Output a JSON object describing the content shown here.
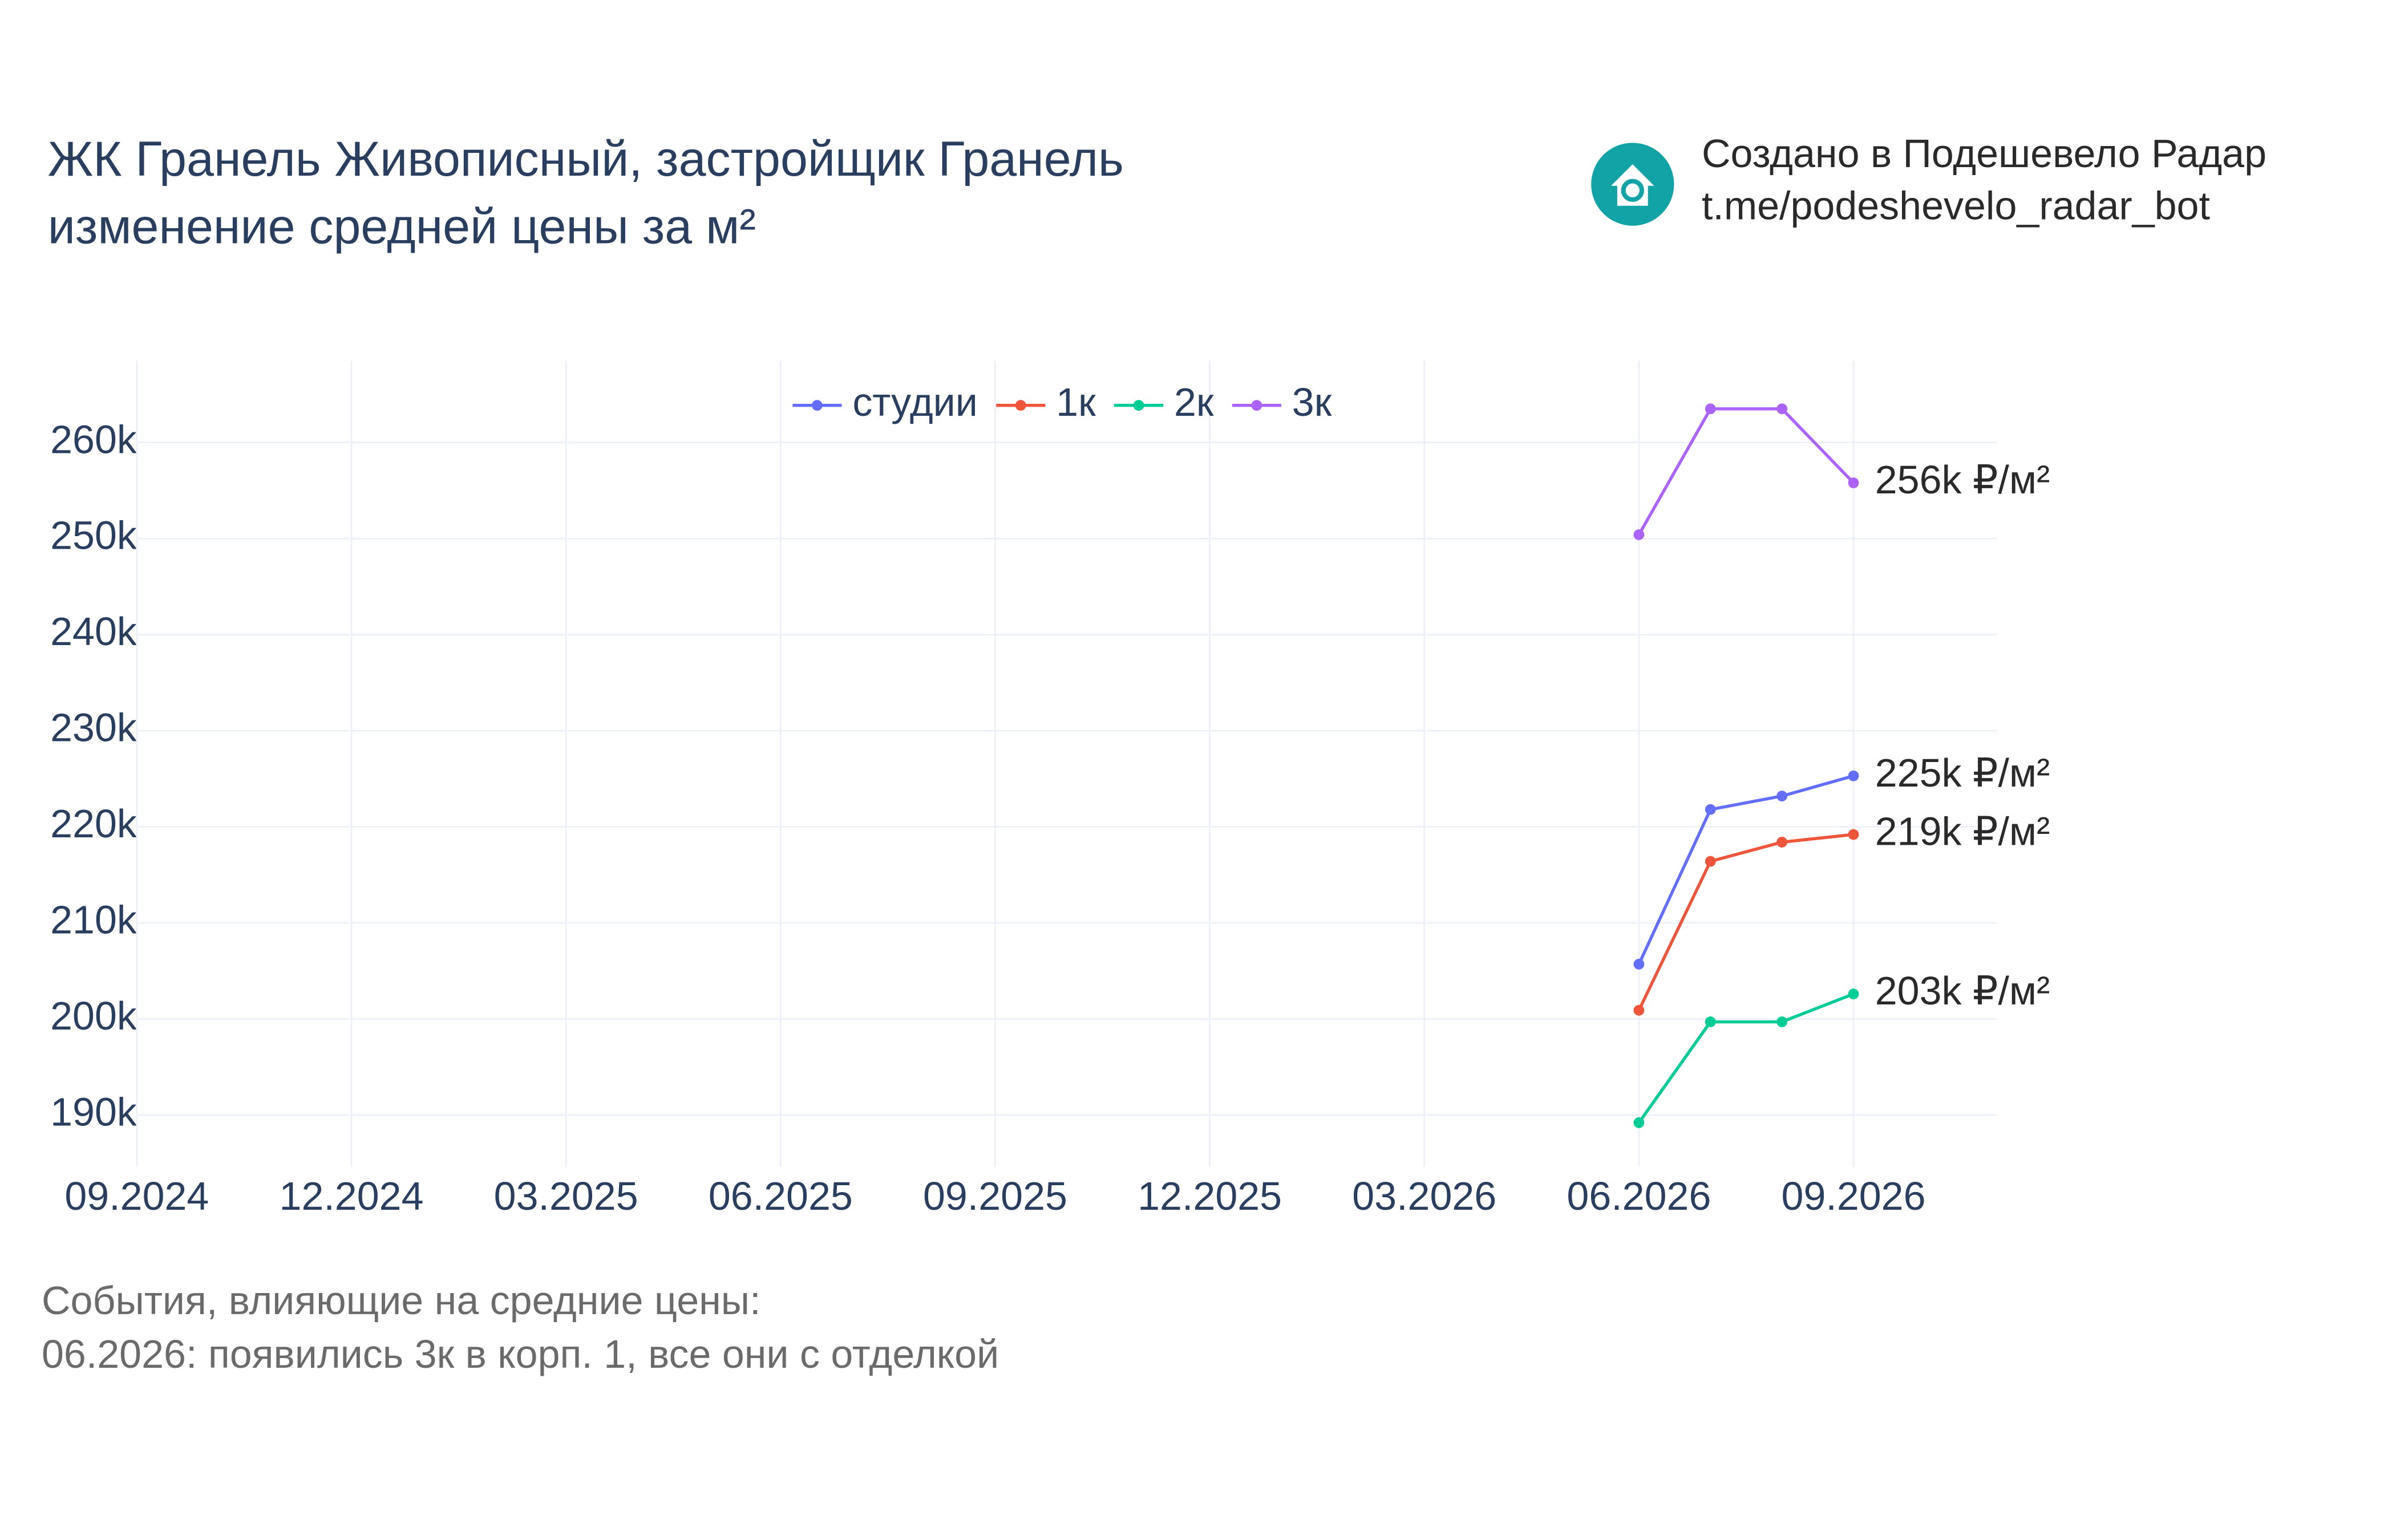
{
  "chart_data": {
    "type": "line",
    "title": [
      "ЖК Гранель Живописный, застройщик Гранель",
      "изменение средней цены за м²"
    ],
    "watermark": [
      "Создано в Подешевело Радар",
      "t.me/podeshevelo_radar_bot"
    ],
    "annotations": [
      "События, влияющие на средние цены:",
      "06.2026: появились 3к в корп. 1, все они с отделкой"
    ],
    "x": [
      "06.2026",
      "07.2026",
      "08.2026",
      "09.2026"
    ],
    "xlim": [
      "09.2024",
      "11.2026"
    ],
    "xticks": [
      "09.2024",
      "12.2024",
      "03.2025",
      "06.2025",
      "09.2025",
      "12.2025",
      "03.2026",
      "06.2026",
      "09.2026"
    ],
    "ylim": [
      184600,
      268500
    ],
    "yticks": [
      {
        "value": 190000,
        "label": "190k"
      },
      {
        "value": 200000,
        "label": "200k"
      },
      {
        "value": 210000,
        "label": "210k"
      },
      {
        "value": 220000,
        "label": "220k"
      },
      {
        "value": 230000,
        "label": "230k"
      },
      {
        "value": 240000,
        "label": "240k"
      },
      {
        "value": 250000,
        "label": "250k"
      },
      {
        "value": 260000,
        "label": "260k"
      }
    ],
    "grid": true,
    "legend": "top",
    "series": [
      {
        "name": "студии",
        "color": "#636efa",
        "values": [
          205700,
          221800,
          223200,
          225300
        ],
        "value_labels": [
          null,
          null,
          null,
          "225k ₽/м²"
        ]
      },
      {
        "name": "1к",
        "color": "#ef553b",
        "values": [
          200900,
          216400,
          218400,
          219200
        ],
        "value_labels": [
          null,
          null,
          null,
          "219k ₽/м²"
        ]
      },
      {
        "name": "2к",
        "color": "#00cc96",
        "values": [
          189200,
          199700,
          199700,
          202600
        ],
        "value_labels": [
          null,
          null,
          null,
          "203k ₽/м²"
        ]
      },
      {
        "name": "3к",
        "color": "#ab63fa",
        "values": [
          250400,
          263500,
          263500,
          255800
        ],
        "value_labels": [
          null,
          null,
          null,
          "256k ₽/м²"
        ]
      }
    ]
  }
}
